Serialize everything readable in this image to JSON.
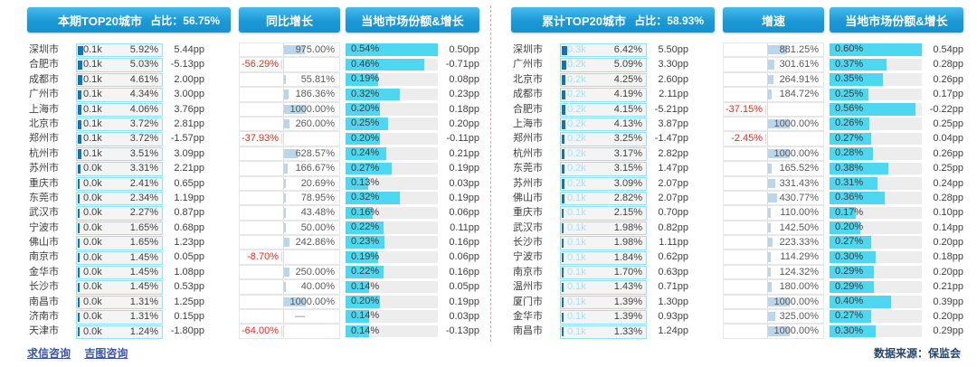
{
  "colors": {
    "header_blue": "#1c98d6",
    "accent_cyan": "#4dd7f0",
    "mini_bar_blue": "#1273b8",
    "positive_bar": "#b9d6ec",
    "negative_bar": "#fbd2b8",
    "negative_text": "#f5271b"
  },
  "footer": {
    "links": [
      "求信咨询",
      "吉图咨询"
    ],
    "source": "数据来源：保监会"
  },
  "sections": [
    {
      "header": {
        "title": "本期TOP20城市",
        "share": "占比：56.75%",
        "growth": "同比增长",
        "local": "当地市场份额&增长"
      },
      "volume_text_tint": "dark",
      "growth_max": 1000,
      "rows": [
        {
          "city": "深圳市",
          "volume": "0.1k",
          "pct": 5.92,
          "pp": "5.44pp",
          "growth": 975.0,
          "share": 0.54,
          "share_pp": "0.50pp"
        },
        {
          "city": "合肥市",
          "volume": "0.1k",
          "pct": 5.03,
          "pp": "-5.13pp",
          "growth": -56.29,
          "share": 0.46,
          "share_pp": "-0.71pp"
        },
        {
          "city": "成都市",
          "volume": "0.1k",
          "pct": 4.61,
          "pp": "2.00pp",
          "growth": 55.81,
          "share": 0.19,
          "share_pp": "0.08pp"
        },
        {
          "city": "广州市",
          "volume": "0.1k",
          "pct": 4.34,
          "pp": "3.00pp",
          "growth": 186.36,
          "share": 0.32,
          "share_pp": "0.23pp"
        },
        {
          "city": "上海市",
          "volume": "0.1k",
          "pct": 4.06,
          "pp": "3.76pp",
          "growth": 1000.0,
          "share": 0.2,
          "share_pp": "0.18pp"
        },
        {
          "city": "北京市",
          "volume": "0.1k",
          "pct": 3.72,
          "pp": "2.81pp",
          "growth": 260.0,
          "share": 0.25,
          "share_pp": "0.20pp"
        },
        {
          "city": "郑州市",
          "volume": "0.1k",
          "pct": 3.72,
          "pp": "-1.57pp",
          "growth": -37.93,
          "share": 0.2,
          "share_pp": "-0.11pp"
        },
        {
          "city": "杭州市",
          "volume": "0.1k",
          "pct": 3.51,
          "pp": "3.09pp",
          "growth": 628.57,
          "share": 0.24,
          "share_pp": "0.21pp"
        },
        {
          "city": "苏州市",
          "volume": "0.0k",
          "pct": 3.31,
          "pp": "2.21pp",
          "growth": 166.67,
          "share": 0.27,
          "share_pp": "0.19pp"
        },
        {
          "city": "重庆市",
          "volume": "0.0k",
          "pct": 2.41,
          "pp": "0.65pp",
          "growth": 20.69,
          "share": 0.13,
          "share_pp": "0.03pp"
        },
        {
          "city": "东莞市",
          "volume": "0.0k",
          "pct": 2.34,
          "pp": "1.19pp",
          "growth": 78.95,
          "share": 0.32,
          "share_pp": "0.19pp"
        },
        {
          "city": "武汉市",
          "volume": "0.0k",
          "pct": 2.27,
          "pp": "0.87pp",
          "growth": 43.48,
          "share": 0.16,
          "share_pp": "0.06pp"
        },
        {
          "city": "宁波市",
          "volume": "0.0k",
          "pct": 1.65,
          "pp": "0.68pp",
          "growth": 50.0,
          "share": 0.22,
          "share_pp": "0.11pp"
        },
        {
          "city": "佛山市",
          "volume": "0.0k",
          "pct": 1.65,
          "pp": "1.23pp",
          "growth": 242.86,
          "share": 0.23,
          "share_pp": "0.16pp"
        },
        {
          "city": "南京市",
          "volume": "0.0k",
          "pct": 1.45,
          "pp": "0.05pp",
          "growth": -8.7,
          "share": 0.19,
          "share_pp": "0.06pp"
        },
        {
          "city": "金华市",
          "volume": "0.0k",
          "pct": 1.45,
          "pp": "1.08pp",
          "growth": 250.0,
          "share": 0.22,
          "share_pp": "0.16pp"
        },
        {
          "city": "长沙市",
          "volume": "0.0k",
          "pct": 1.45,
          "pp": "0.53pp",
          "growth": 40.0,
          "share": 0.14,
          "share_pp": "0.05pp"
        },
        {
          "city": "南昌市",
          "volume": "0.0k",
          "pct": 1.31,
          "pp": "1.25pp",
          "growth": 1000.0,
          "share": 0.2,
          "share_pp": "0.19pp"
        },
        {
          "city": "济南市",
          "volume": "0.0k",
          "pct": 1.31,
          "pp": "0.15pp",
          "growth": null,
          "share": 0.14,
          "share_pp": "0.03pp"
        },
        {
          "city": "天津市",
          "volume": "0.0k",
          "pct": 1.24,
          "pp": "-1.80pp",
          "growth": -64.0,
          "share": 0.14,
          "share_pp": "-0.13pp"
        }
      ]
    },
    {
      "header": {
        "title": "累计TOP20城市",
        "share": "占比：58.93%",
        "growth": "增速",
        "local": "当地市场份额&增长"
      },
      "volume_text_tint": "cyan",
      "growth_max": 1000,
      "rows": [
        {
          "city": "深圳市",
          "volume": "0.3k",
          "pct": 6.42,
          "pp": "5.50pp",
          "growth": 881.25,
          "share": 0.6,
          "share_pp": "0.54pp"
        },
        {
          "city": "广州市",
          "volume": "0.2k",
          "pct": 5.09,
          "pp": "3.30pp",
          "growth": 301.61,
          "share": 0.37,
          "share_pp": "0.28pp"
        },
        {
          "city": "北京市",
          "volume": "0.2k",
          "pct": 4.25,
          "pp": "2.60pp",
          "growth": 264.91,
          "share": 0.35,
          "share_pp": "0.26pp"
        },
        {
          "city": "成都市",
          "volume": "0.2k",
          "pct": 4.19,
          "pp": "2.11pp",
          "growth": 184.72,
          "share": 0.25,
          "share_pp": "0.17pp"
        },
        {
          "city": "合肥市",
          "volume": "0.2k",
          "pct": 4.15,
          "pp": "-5.21pp",
          "growth": -37.15,
          "share": 0.56,
          "share_pp": "-0.22pp"
        },
        {
          "city": "上海市",
          "volume": "0.2k",
          "pct": 4.13,
          "pp": "3.87pp",
          "growth": 1000.0,
          "share": 0.26,
          "share_pp": "0.25pp"
        },
        {
          "city": "郑州市",
          "volume": "0.2k",
          "pct": 3.25,
          "pp": "-1.47pp",
          "growth": -2.45,
          "share": 0.27,
          "share_pp": "0.04pp"
        },
        {
          "city": "杭州市",
          "volume": "0.2k",
          "pct": 3.17,
          "pp": "2.82pp",
          "growth": 1000.0,
          "share": 0.28,
          "share_pp": "0.26pp"
        },
        {
          "city": "东莞市",
          "volume": "0.2k",
          "pct": 3.15,
          "pp": "1.47pp",
          "growth": 165.52,
          "share": 0.38,
          "share_pp": "0.25pp"
        },
        {
          "city": "苏州市",
          "volume": "0.2k",
          "pct": 3.09,
          "pp": "2.07pp",
          "growth": 331.43,
          "share": 0.31,
          "share_pp": "0.24pp"
        },
        {
          "city": "佛山市",
          "volume": "0.1k",
          "pct": 2.82,
          "pp": "2.07pp",
          "growth": 430.77,
          "share": 0.36,
          "share_pp": "0.28pp"
        },
        {
          "city": "重庆市",
          "volume": "0.1k",
          "pct": 2.15,
          "pp": "0.70pp",
          "growth": 110.0,
          "share": 0.17,
          "share_pp": "0.10pp"
        },
        {
          "city": "武汉市",
          "volume": "0.1k",
          "pct": 1.98,
          "pp": "0.82pp",
          "growth": 142.5,
          "share": 0.2,
          "share_pp": "0.14pp"
        },
        {
          "city": "长沙市",
          "volume": "0.1k",
          "pct": 1.98,
          "pp": "1.11pp",
          "growth": 223.33,
          "share": 0.27,
          "share_pp": "0.20pp"
        },
        {
          "city": "宁波市",
          "volume": "0.1k",
          "pct": 1.84,
          "pp": "0.62pp",
          "growth": 114.29,
          "share": 0.3,
          "share_pp": "0.18pp"
        },
        {
          "city": "南京市",
          "volume": "0.1k",
          "pct": 1.7,
          "pp": "0.63pp",
          "growth": 124.32,
          "share": 0.29,
          "share_pp": "0.20pp"
        },
        {
          "city": "温州市",
          "volume": "0.1k",
          "pct": 1.43,
          "pp": "0.71pp",
          "growth": 180.0,
          "share": 0.29,
          "share_pp": "0.21pp"
        },
        {
          "city": "厦门市",
          "volume": "0.1k",
          "pct": 1.39,
          "pp": "1.30pp",
          "growth": 1000.0,
          "share": 0.4,
          "share_pp": "0.39pp"
        },
        {
          "city": "金华市",
          "volume": "0.1k",
          "pct": 1.39,
          "pp": "0.93pp",
          "growth": 325.0,
          "share": 0.27,
          "share_pp": "0.20pp"
        },
        {
          "city": "南昌市",
          "volume": "0.1k",
          "pct": 1.33,
          "pp": "1.24pp",
          "growth": 1000.0,
          "share": 0.3,
          "share_pp": "0.29pp"
        }
      ]
    }
  ]
}
